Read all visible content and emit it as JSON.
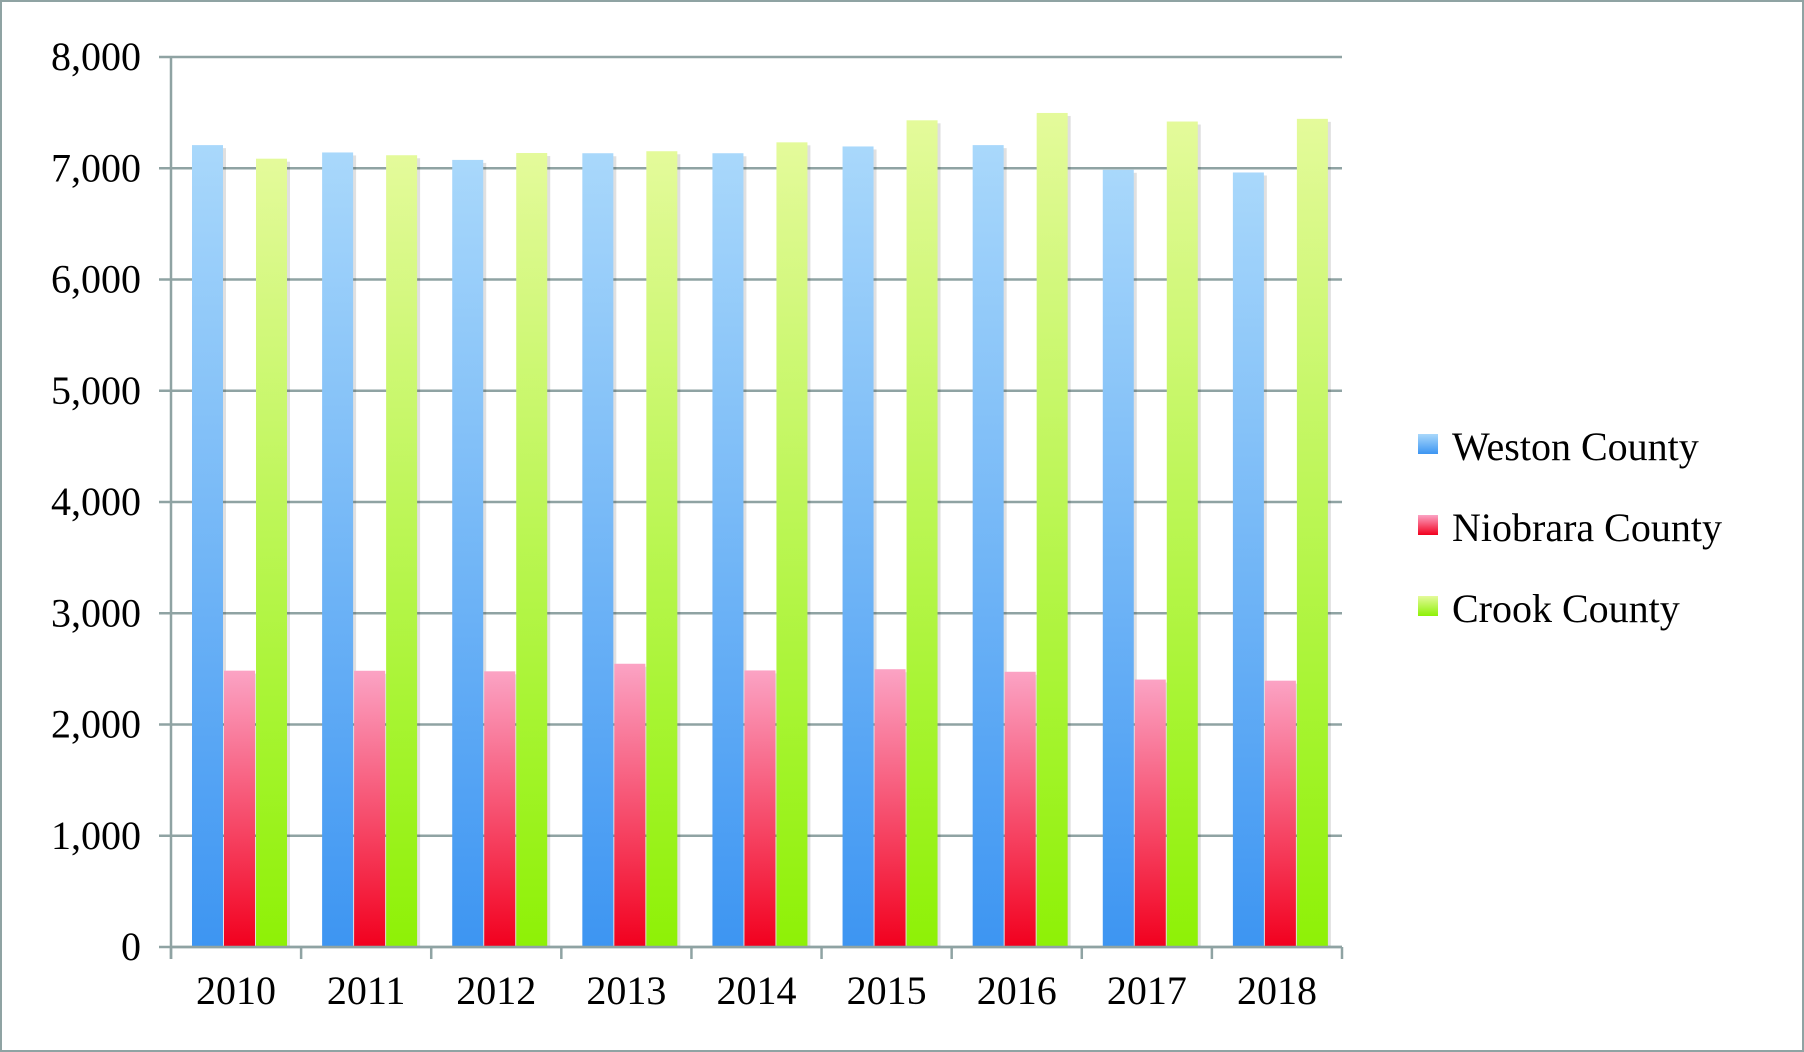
{
  "chart_data": {
    "type": "bar",
    "categories": [
      "2010",
      "2011",
      "2012",
      "2013",
      "2014",
      "2015",
      "2016",
      "2017",
      "2018"
    ],
    "series": [
      {
        "name": "Weston County",
        "values": [
          7208,
          7142,
          7075,
          7135,
          7135,
          7196,
          7208,
          6986,
          6962
        ],
        "color_top": "#a9d8fb",
        "color_bottom": "#3d95f2"
      },
      {
        "name": "Niobrara County",
        "values": [
          2484,
          2483,
          2478,
          2546,
          2486,
          2497,
          2474,
          2404,
          2394
        ],
        "color_top": "#fba3c4",
        "color_bottom": "#f2001e"
      },
      {
        "name": "Crook County",
        "values": [
          7086,
          7117,
          7137,
          7153,
          7233,
          7431,
          7497,
          7420,
          7444
        ],
        "color_top": "#e4fa9b",
        "color_bottom": "#8ef106"
      }
    ],
    "y_ticks": [
      "0",
      "1,000",
      "2,000",
      "3,000",
      "4,000",
      "5,000",
      "6,000",
      "7,000",
      "8,000"
    ],
    "ylim": [
      0,
      8000
    ],
    "title": "",
    "xlabel": "",
    "ylabel": "",
    "grid": true,
    "grid_color": "#8fa3a3",
    "legend_position": "right"
  }
}
